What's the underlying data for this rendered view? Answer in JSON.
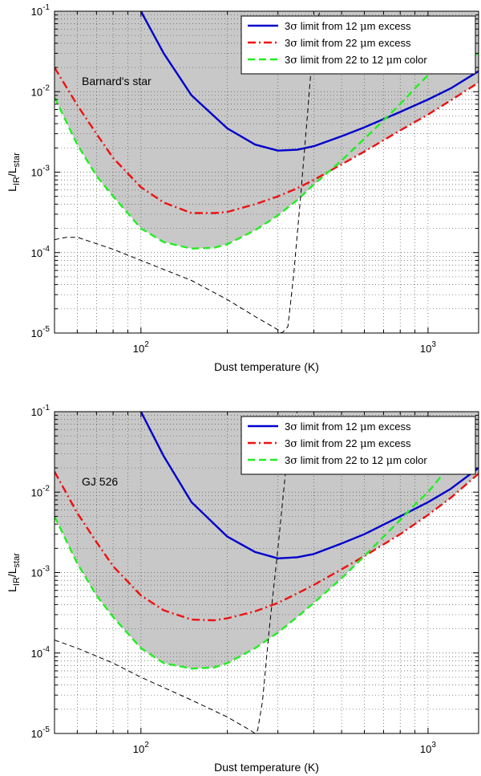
{
  "chart_data": [
    {
      "type": "line",
      "xscale": "log",
      "yscale": "log",
      "xlim": [
        50,
        1500
      ],
      "ylim": [
        1e-05,
        0.1
      ],
      "xlabel": "Dust temperature (K)",
      "ylabel": "L_IR/L_star",
      "annotation": "Barnard's star",
      "grid": true,
      "legend_position": "top-right",
      "excluded_region_color": "#c8c8c8",
      "x_tick_labels": [
        {
          "value": 100,
          "base": "10",
          "exp": "2"
        },
        {
          "value": 1000,
          "base": "10",
          "exp": "3"
        }
      ],
      "y_tick_labels": [
        {
          "value": 1e-05,
          "base": "10",
          "exp": "-5"
        },
        {
          "value": 0.0001,
          "base": "10",
          "exp": "-4"
        },
        {
          "value": 0.001,
          "base": "10",
          "exp": "-3"
        },
        {
          "value": 0.01,
          "base": "10",
          "exp": "-2"
        },
        {
          "value": 0.1,
          "base": "10",
          "exp": "-1"
        }
      ],
      "series": [
        {
          "name": "3σ limit from 12 μm excess",
          "legend_parts": [
            "3",
            "σ",
            " limit from 12 ",
            "μ",
            "m excess"
          ],
          "color": "#0000cc",
          "dash": "solid",
          "x": [
            100,
            120,
            150,
            200,
            250,
            300,
            350,
            400,
            500,
            600,
            800,
            1000,
            1200,
            1500
          ],
          "y": [
            0.1,
            0.03,
            0.009,
            0.0035,
            0.0022,
            0.00185,
            0.0019,
            0.0021,
            0.0028,
            0.0036,
            0.0056,
            0.008,
            0.011,
            0.018
          ]
        },
        {
          "name": "3σ limit from 22 μm excess",
          "legend_parts": [
            "3",
            "σ",
            " limit from 22 ",
            "μ",
            "m excess"
          ],
          "color": "#ee1111",
          "dash": "dashdot",
          "x": [
            50,
            60,
            70,
            80,
            100,
            120,
            150,
            180,
            200,
            250,
            300,
            350,
            400,
            500,
            600,
            800,
            1000,
            1200,
            1500
          ],
          "y": [
            0.02,
            0.0068,
            0.003,
            0.0015,
            0.00065,
            0.00042,
            0.00031,
            0.00031,
            0.00032,
            0.0004,
            0.0005,
            0.00063,
            0.0008,
            0.00125,
            0.0018,
            0.0033,
            0.0052,
            0.0078,
            0.013
          ]
        },
        {
          "name": "3σ limit from 22 to 12 μm color",
          "legend_parts": [
            "3",
            "σ",
            " limit from 22 to 12 ",
            "μ",
            "m color"
          ],
          "color": "#22ee22",
          "dash": "dashed",
          "x": [
            50,
            60,
            70,
            80,
            100,
            120,
            150,
            180,
            200,
            250,
            300,
            350,
            400,
            500,
            600,
            700,
            800,
            900,
            1000,
            1200,
            1500
          ],
          "y": [
            0.0085,
            0.0022,
            0.0009,
            0.0005,
            0.0002,
            0.000135,
            0.000112,
            0.000115,
            0.000127,
            0.00019,
            0.00029,
            0.00045,
            0.0007,
            0.0014,
            0.0026,
            0.0044,
            0.007,
            0.011,
            0.016,
            0.022,
            0.03
          ]
        },
        {
          "name": "model",
          "color": "#000000",
          "dash": "thin-dashed",
          "legend": false,
          "x": [
            50,
            55,
            60,
            80,
            100,
            150,
            200,
            250,
            300,
            310,
            325,
            340,
            360,
            380,
            400,
            420
          ],
          "y": [
            0.000145,
            0.000155,
            0.000155,
            0.00011,
            8e-05,
            4.5e-05,
            2.6e-05,
            1.6e-05,
            1.1e-05,
            1e-05,
            1.2e-05,
            5e-05,
            0.0005,
            0.005,
            0.05,
            0.1
          ]
        }
      ]
    },
    {
      "type": "line",
      "xscale": "log",
      "yscale": "log",
      "xlim": [
        50,
        1500
      ],
      "ylim": [
        1e-05,
        0.1
      ],
      "xlabel": "Dust temperature (K)",
      "ylabel": "L_IR/L_star",
      "annotation": "GJ 526",
      "grid": true,
      "legend_position": "top-right",
      "excluded_region_color": "#c8c8c8",
      "x_tick_labels": [
        {
          "value": 100,
          "base": "10",
          "exp": "2"
        },
        {
          "value": 1000,
          "base": "10",
          "exp": "3"
        }
      ],
      "y_tick_labels": [
        {
          "value": 1e-05,
          "base": "10",
          "exp": "-5"
        },
        {
          "value": 0.0001,
          "base": "10",
          "exp": "-4"
        },
        {
          "value": 0.001,
          "base": "10",
          "exp": "-3"
        },
        {
          "value": 0.01,
          "base": "10",
          "exp": "-2"
        },
        {
          "value": 0.1,
          "base": "10",
          "exp": "-1"
        }
      ],
      "series": [
        {
          "name": "3σ limit from 12 μm excess",
          "legend_parts": [
            "3",
            "σ",
            " limit from 12 ",
            "μ",
            "m excess"
          ],
          "color": "#0000cc",
          "dash": "solid",
          "x": [
            100,
            120,
            150,
            200,
            250,
            300,
            350,
            400,
            500,
            600,
            800,
            1000,
            1200,
            1500
          ],
          "y": [
            0.1,
            0.028,
            0.0075,
            0.0028,
            0.0018,
            0.0015,
            0.00155,
            0.0017,
            0.0023,
            0.003,
            0.005,
            0.0075,
            0.011,
            0.02
          ]
        },
        {
          "name": "3σ limit from 22 μm excess",
          "legend_parts": [
            "3",
            "σ",
            " limit from 22 ",
            "μ",
            "m excess"
          ],
          "color": "#ee1111",
          "dash": "dashdot",
          "x": [
            50,
            60,
            70,
            80,
            100,
            120,
            150,
            180,
            200,
            250,
            300,
            350,
            400,
            500,
            600,
            800,
            1000,
            1200,
            1500
          ],
          "y": [
            0.018,
            0.0055,
            0.0024,
            0.0012,
            0.00052,
            0.00034,
            0.00026,
            0.000255,
            0.00027,
            0.00033,
            0.00042,
            0.00055,
            0.0007,
            0.0011,
            0.0016,
            0.003,
            0.0052,
            0.0085,
            0.017
          ]
        },
        {
          "name": "3σ limit from 22 to 12 μm color",
          "legend_parts": [
            "3",
            "σ",
            " limit from 22 to 12 ",
            "μ",
            "m color"
          ],
          "color": "#22ee22",
          "dash": "dashed",
          "x": [
            50,
            60,
            70,
            80,
            100,
            120,
            150,
            180,
            200,
            250,
            300,
            350,
            400,
            500,
            600,
            700,
            800,
            900,
            1000,
            1200,
            1500
          ],
          "y": [
            0.005,
            0.0013,
            0.00052,
            0.00028,
            0.000115,
            7.5e-05,
            6.4e-05,
            6.6e-05,
            7.5e-05,
            0.000115,
            0.00018,
            0.00028,
            0.00042,
            0.00085,
            0.0016,
            0.0028,
            0.0045,
            0.007,
            0.01,
            0.022,
            0.06
          ]
        },
        {
          "name": "model",
          "color": "#000000",
          "dash": "thin-dashed",
          "legend": false,
          "x": [
            50,
            60,
            80,
            100,
            150,
            200,
            240,
            250,
            255,
            265,
            280,
            300,
            320,
            350
          ],
          "y": [
            0.000145,
            0.000115,
            7.5e-05,
            5e-05,
            2.6e-05,
            1.6e-05,
            1.1e-05,
            1e-05,
            1.1e-05,
            2.5e-05,
            0.0002,
            0.002,
            0.02,
            0.1
          ]
        }
      ]
    }
  ]
}
